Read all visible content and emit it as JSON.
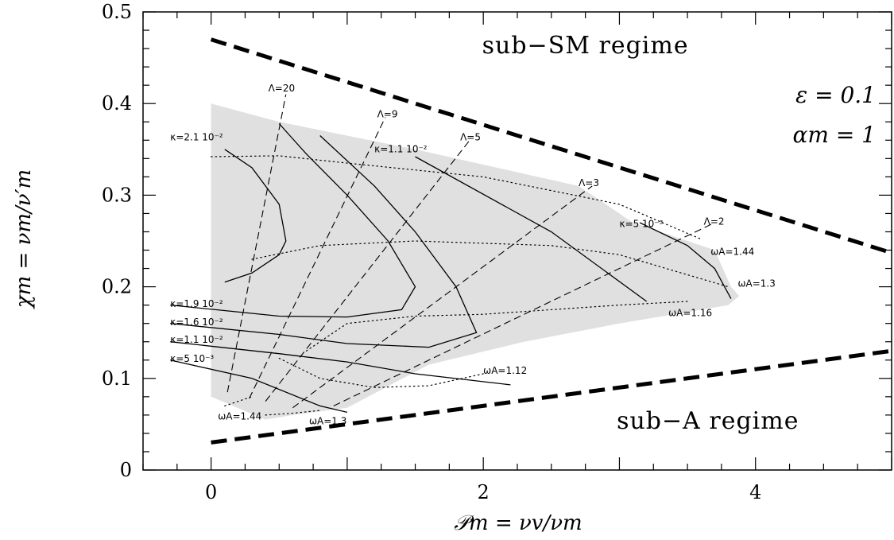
{
  "chart_data": {
    "type": "line",
    "xlabel": "𝒫m = νv/νm",
    "ylabel": "χm = νm/ν′m",
    "xlim": [
      -0.5,
      5
    ],
    "ylim": [
      0,
      0.5
    ],
    "x_ticks": [
      {
        "v": 0,
        "t": "0"
      },
      {
        "v": 2,
        "t": "2"
      },
      {
        "v": 4,
        "t": "4"
      }
    ],
    "y_ticks": [
      {
        "v": 0,
        "t": "0"
      },
      {
        "v": 0.1,
        "t": "0.1"
      },
      {
        "v": 0.2,
        "t": "0.2"
      },
      {
        "v": 0.3,
        "t": "0.3"
      },
      {
        "v": 0.4,
        "t": "0.4"
      },
      {
        "v": 0.5,
        "t": "0.5"
      }
    ],
    "grid": false,
    "region_color": "#e0e0e0",
    "allowed_region": [
      [
        0,
        0.4
      ],
      [
        0.5,
        0.38
      ],
      [
        1.5,
        0.35
      ],
      [
        2.7,
        0.31
      ],
      [
        3.1,
        0.27
      ],
      [
        3.5,
        0.25
      ],
      [
        3.7,
        0.24
      ],
      [
        3.82,
        0.2
      ],
      [
        3.88,
        0.19
      ],
      [
        3.8,
        0.18
      ],
      [
        3.0,
        0.16
      ],
      [
        2.3,
        0.14
      ],
      [
        1.6,
        0.115
      ],
      [
        1.0,
        0.068
      ],
      [
        0.6,
        0.06
      ],
      [
        0.4,
        0.055
      ],
      [
        0,
        0.08
      ]
    ],
    "boundaries": [
      {
        "name": "sub-SM boundary",
        "x": [
          0,
          5
        ],
        "y": [
          0.47,
          0.237
        ]
      },
      {
        "name": "sub-A boundary",
        "x": [
          0,
          5
        ],
        "y": [
          0.03,
          0.13
        ]
      }
    ],
    "lambda_lines": [
      {
        "label": "Λ=20",
        "x": [
          0.12,
          0.55
        ],
        "y": [
          0.085,
          0.41
        ],
        "label_x": 0.42,
        "label_y": 0.413
      },
      {
        "label": "Λ=9",
        "x": [
          0.28,
          1.28
        ],
        "y": [
          0.078,
          0.385
        ],
        "label_x": 1.22,
        "label_y": 0.385
      },
      {
        "label": "Λ=5",
        "x": [
          0.4,
          1.9
        ],
        "y": [
          0.075,
          0.36
        ],
        "label_x": 1.83,
        "label_y": 0.36
      },
      {
        "label": "Λ=3",
        "x": [
          0.6,
          2.8
        ],
        "y": [
          0.068,
          0.31
        ],
        "label_x": 2.7,
        "label_y": 0.31
      },
      {
        "label": "Λ=2",
        "x": [
          0.9,
          3.7
        ],
        "y": [
          0.07,
          0.27
        ],
        "label_x": 3.62,
        "label_y": 0.268
      }
    ],
    "kappa_curves": [
      {
        "label": "κ=2.1 10⁻²",
        "x": [
          0.1,
          0.3,
          0.5,
          0.55,
          0.5,
          0.3,
          0.1
        ],
        "y": [
          0.35,
          0.33,
          0.29,
          0.25,
          0.235,
          0.215,
          0.205
        ],
        "label_x": -0.3,
        "label_y": 0.36
      },
      {
        "label": "κ=1.9 10⁻²",
        "x": [
          -0.3,
          0.5,
          1.0,
          1.4,
          1.5,
          1.3,
          1.0,
          0.7,
          0.5
        ],
        "y": [
          0.18,
          0.168,
          0.167,
          0.175,
          0.2,
          0.25,
          0.3,
          0.345,
          0.378
        ],
        "label_x": -0.3,
        "label_y": 0.178
      },
      {
        "label": "κ=1.6 10⁻²",
        "x": [
          -0.3,
          0.5,
          1.0,
          1.6,
          1.95,
          1.8,
          1.5,
          1.2,
          0.8
        ],
        "y": [
          0.16,
          0.148,
          0.138,
          0.134,
          0.15,
          0.2,
          0.26,
          0.31,
          0.365
        ],
        "label_x": -0.3,
        "label_y": 0.158
      },
      {
        "label": "κ=1.1 10⁻²",
        "x": [
          -0.3,
          0.5,
          1.0,
          1.5,
          2.2
        ],
        "y": [
          0.14,
          0.127,
          0.118,
          0.105,
          0.093
        ],
        "label_x": -0.3,
        "label_y": 0.139
      },
      {
        "label": "κ=1.1 10⁻²",
        "x": [
          1.5,
          2.5,
          3.2
        ],
        "y": [
          0.342,
          0.26,
          0.184
        ],
        "label_x": 1.2,
        "label_y": 0.347
      },
      {
        "label": "κ=5 10⁻³",
        "x": [
          -0.3,
          0.3,
          0.8,
          1.0
        ],
        "y": [
          0.12,
          0.1,
          0.07,
          0.063
        ],
        "label_x": -0.3,
        "label_y": 0.118
      },
      {
        "label": "κ=5 10⁻³",
        "x": [
          3.15,
          3.5,
          3.7,
          3.82
        ],
        "y": [
          0.27,
          0.245,
          0.22,
          0.187
        ],
        "label_x": 3.0,
        "label_y": 0.265
      }
    ],
    "omega_curves": [
      {
        "label": "ωA=1.44",
        "x": [
          0,
          0.5,
          1.0,
          2.0,
          3.0,
          3.6
        ],
        "y": [
          0.342,
          0.343,
          0.335,
          0.32,
          0.29,
          0.252
        ],
        "label_x": 3.67,
        "label_y": 0.235
      },
      {
        "label": "ωA=1.3",
        "x": [
          0.3,
          0.8,
          1.5,
          2.5,
          3.0,
          3.8
        ],
        "y": [
          0.23,
          0.245,
          0.25,
          0.245,
          0.235,
          0.2
        ],
        "label_x": 3.87,
        "label_y": 0.2
      },
      {
        "label": "ωA=1.16",
        "x": [
          0.7,
          1.0,
          1.5,
          2.0,
          3.0,
          3.5
        ],
        "y": [
          0.13,
          0.16,
          0.168,
          0.17,
          0.18,
          0.184
        ],
        "label_x": 3.36,
        "label_y": 0.168
      },
      {
        "label": "ωA=1.12",
        "x": [
          0.5,
          0.8,
          1.2,
          1.6,
          2.0
        ],
        "y": [
          0.122,
          0.1,
          0.09,
          0.092,
          0.105
        ],
        "label_x": 2.0,
        "label_y": 0.105
      },
      {
        "label": "ωA=1.44",
        "x": [
          0.1,
          0.2,
          0.3
        ],
        "y": [
          0.07,
          0.075,
          0.08
        ],
        "label_x": 0.05,
        "label_y": 0.055
      },
      {
        "label": "ωA=1.3",
        "x": [
          0.4,
          0.6,
          0.8
        ],
        "y": [
          0.06,
          0.062,
          0.065
        ],
        "label_x": 0.72,
        "label_y": 0.05
      }
    ],
    "annotations": [
      {
        "text": "sub−SM regime",
        "x": 2.75,
        "y": 0.455
      },
      {
        "text": "sub−A regime",
        "x": 3.65,
        "y": 0.045
      }
    ],
    "params": [
      {
        "text": "ε = 0.1"
      },
      {
        "text": "αm = 1"
      }
    ]
  }
}
